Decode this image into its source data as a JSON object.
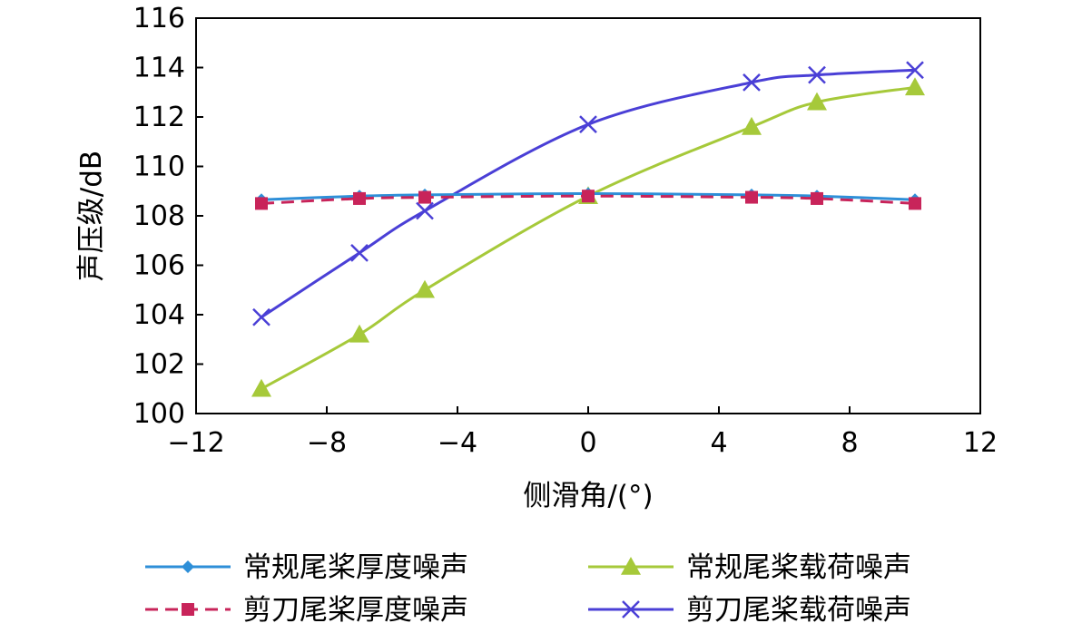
{
  "chart_data": {
    "type": "line",
    "xlabel": "侧滑角/(°)",
    "ylabel": "声压级/dB",
    "xlim": [
      -12,
      12
    ],
    "ylim": [
      100,
      116
    ],
    "xticks": [
      -12,
      -8,
      -4,
      0,
      4,
      8,
      12
    ],
    "yticks": [
      100,
      102,
      104,
      106,
      108,
      110,
      112,
      114,
      116
    ],
    "x": [
      -10,
      -7,
      -5,
      0,
      5,
      7,
      10
    ],
    "grid": false,
    "legend_position": "bottom",
    "series": [
      {
        "name": "常规尾桨厚度噪声",
        "color": "#2e8fd8",
        "marker": "diamond",
        "dash": "solid",
        "values": [
          108.65,
          108.8,
          108.85,
          108.9,
          108.85,
          108.8,
          108.65
        ]
      },
      {
        "name": "剪刀尾桨厚度噪声",
        "color": "#c8245a",
        "marker": "square",
        "dash": "dashed",
        "values": [
          108.5,
          108.7,
          108.75,
          108.8,
          108.75,
          108.7,
          108.5
        ]
      },
      {
        "name": "常规尾桨载荷噪声",
        "color": "#a6c93a",
        "marker": "triangle",
        "dash": "solid",
        "values": [
          101.0,
          103.2,
          105.0,
          108.8,
          111.6,
          112.6,
          113.2
        ]
      },
      {
        "name": "剪刀尾桨载荷噪声",
        "color": "#4a3fd6",
        "marker": "x",
        "dash": "solid",
        "values": [
          103.9,
          106.5,
          108.2,
          111.7,
          113.4,
          113.7,
          113.9
        ]
      }
    ]
  }
}
